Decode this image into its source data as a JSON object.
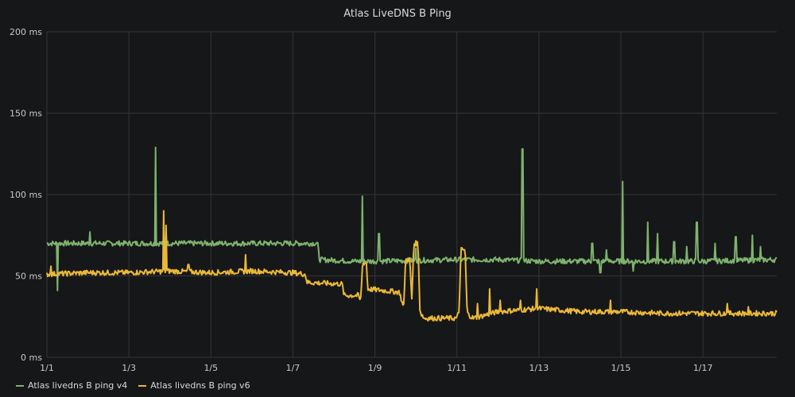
{
  "panel": {
    "title": "Atlas LiveDNS B Ping"
  },
  "colors": {
    "background": "#161719",
    "grid": "#333538",
    "text": "#c8c9ca"
  },
  "chart_data": {
    "type": "line",
    "title": "Atlas LiveDNS B Ping",
    "xlabel": "",
    "ylabel": "",
    "x_ticks": [
      "1/1",
      "1/3",
      "1/5",
      "1/7",
      "1/9",
      "1/11",
      "1/13",
      "1/15",
      "1/17"
    ],
    "x_tick_days": [
      0,
      2,
      4,
      6,
      8,
      10,
      12,
      14,
      16
    ],
    "xlim_days": [
      0,
      17.8
    ],
    "y_ticks": [
      "0 ms",
      "50 ms",
      "100 ms",
      "150 ms",
      "200 ms"
    ],
    "ylim": [
      0,
      200
    ],
    "grid": true,
    "legend_position": "bottom-left",
    "series": [
      {
        "name": "Atlas livedns B ping v4",
        "color": "#7eb26d",
        "baseline": [
          [
            0,
            70
          ],
          [
            2,
            70
          ],
          [
            4,
            70
          ],
          [
            6,
            70
          ],
          [
            6.6,
            70
          ],
          [
            6.65,
            60
          ],
          [
            7.5,
            59
          ],
          [
            8,
            59
          ],
          [
            10,
            60
          ],
          [
            11,
            60
          ],
          [
            12,
            59
          ],
          [
            14,
            59
          ],
          [
            16,
            59
          ],
          [
            17.8,
            60
          ]
        ],
        "spikes": [
          [
            0.25,
            41
          ],
          [
            1.05,
            77
          ],
          [
            2.65,
            129
          ],
          [
            2.9,
            76
          ],
          [
            7.7,
            99
          ],
          [
            8.1,
            76
          ],
          [
            9,
            67
          ],
          [
            11.6,
            128
          ],
          [
            13.3,
            70
          ],
          [
            13.5,
            52
          ],
          [
            13.65,
            66
          ],
          [
            14.05,
            108
          ],
          [
            14.3,
            53
          ],
          [
            14.65,
            83
          ],
          [
            14.9,
            76
          ],
          [
            15.3,
            71
          ],
          [
            15.6,
            68
          ],
          [
            15.85,
            83
          ],
          [
            16.3,
            70
          ],
          [
            16.8,
            74
          ],
          [
            17.2,
            75
          ],
          [
            17.4,
            68
          ]
        ]
      },
      {
        "name": "Atlas livedns B ping v6",
        "color": "#eab839",
        "baseline": [
          [
            0,
            51
          ],
          [
            1,
            52
          ],
          [
            2,
            52
          ],
          [
            3,
            53
          ],
          [
            4,
            52
          ],
          [
            5,
            53
          ],
          [
            6,
            52
          ],
          [
            6.3,
            51
          ],
          [
            6.35,
            46
          ],
          [
            7.2,
            45
          ],
          [
            7.25,
            38
          ],
          [
            7.6,
            38
          ],
          [
            7.65,
            34
          ],
          [
            7.7,
            58
          ],
          [
            7.8,
            58
          ],
          [
            7.82,
            42
          ],
          [
            8.6,
            40
          ],
          [
            8.62,
            38
          ],
          [
            8.7,
            30
          ],
          [
            8.75,
            60
          ],
          [
            8.85,
            60
          ],
          [
            8.9,
            35
          ],
          [
            8.95,
            70
          ],
          [
            9.05,
            70
          ],
          [
            9.1,
            28
          ],
          [
            9.2,
            24
          ],
          [
            10,
            24
          ],
          [
            10.05,
            28
          ],
          [
            10.1,
            66
          ],
          [
            10.2,
            66
          ],
          [
            10.25,
            27
          ],
          [
            10.4,
            24
          ],
          [
            11,
            28
          ],
          [
            12,
            30
          ],
          [
            13,
            28
          ],
          [
            14,
            28
          ],
          [
            15,
            27
          ],
          [
            16,
            27
          ],
          [
            17,
            27
          ],
          [
            17.8,
            27
          ]
        ],
        "spikes": [
          [
            0.1,
            56
          ],
          [
            2.85,
            90
          ],
          [
            2.9,
            81
          ],
          [
            3.45,
            57
          ],
          [
            4.85,
            63
          ],
          [
            10.5,
            33
          ],
          [
            10.8,
            42
          ],
          [
            11.05,
            35
          ],
          [
            11.55,
            35
          ],
          [
            11.95,
            42
          ],
          [
            13.75,
            35
          ],
          [
            16.6,
            33
          ],
          [
            17.1,
            31
          ]
        ]
      }
    ]
  }
}
